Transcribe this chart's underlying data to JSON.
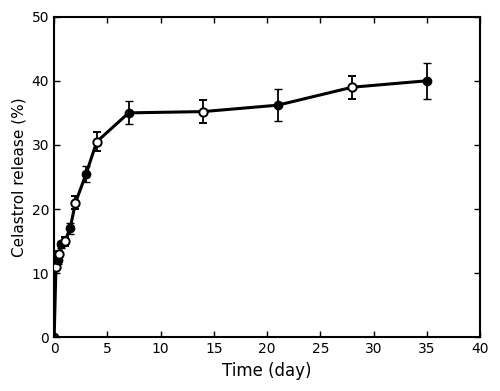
{
  "x": [
    0,
    0.17,
    0.33,
    0.5,
    0.67,
    1.0,
    1.5,
    2.0,
    3.0,
    4.0,
    7.0,
    14.0,
    21.0,
    28.0,
    35.0
  ],
  "y": [
    0,
    11.0,
    12.0,
    13.0,
    14.5,
    15.0,
    17.0,
    21.0,
    25.5,
    30.5,
    35.0,
    35.2,
    36.2,
    39.0,
    40.0
  ],
  "yerr": [
    0,
    0.5,
    0.5,
    0.5,
    0.6,
    0.7,
    0.9,
    1.0,
    1.2,
    1.5,
    1.8,
    1.8,
    2.5,
    1.8,
    2.8
  ],
  "marker_filled": [
    true,
    false,
    true,
    false,
    true,
    false,
    true,
    false,
    true,
    false,
    true,
    false,
    true,
    false,
    true
  ],
  "xlabel": "Time (day)",
  "ylabel": "Celastrol release (%)",
  "xlim": [
    0,
    40
  ],
  "ylim": [
    0,
    50
  ],
  "xticks": [
    0,
    5,
    10,
    15,
    20,
    25,
    30,
    35,
    40
  ],
  "yticks": [
    0,
    10,
    20,
    30,
    40,
    50
  ],
  "line_color": "#000000",
  "marker_size": 6,
  "line_width": 2.2,
  "capsize": 3,
  "elinewidth": 1.3,
  "background_color": "#ffffff",
  "xlabel_fontsize": 12,
  "ylabel_fontsize": 11,
  "tick_fontsize": 10,
  "spine_linewidth": 1.5
}
